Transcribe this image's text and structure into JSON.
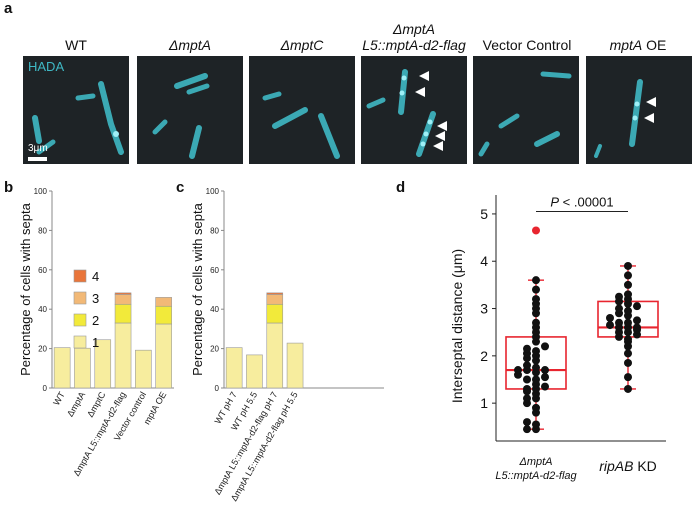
{
  "panel_a": {
    "letter": "a",
    "labels": [
      {
        "main": "WT"
      },
      {
        "main": "ΔmptA",
        "italic": true
      },
      {
        "main": "ΔmptC",
        "italic": true
      },
      {
        "line1": "ΔmptA",
        "line2": "L5::mptA-d2-flag",
        "italic": true
      },
      {
        "main": "Vector Control"
      },
      {
        "main": "mptA OE",
        "italic_part": "mptA",
        "plain_part": " OE"
      }
    ],
    "stain_label": "HADA",
    "scale_bar_label": "3μm",
    "colors": {
      "stain": "#3fb8c4",
      "background": "#1e2326"
    }
  },
  "panel_b": {
    "letter": "b"
  },
  "panel_c": {
    "letter": "c"
  },
  "panel_d": {
    "letter": "d"
  },
  "chart_data": [
    {
      "type": "bar",
      "stacked": true,
      "ylabel": "Percentage of cells with septa",
      "ylim": [
        0,
        100
      ],
      "yticks": [
        0,
        20,
        40,
        60,
        80,
        100
      ],
      "categories": [
        "WT",
        "ΔmptA",
        "ΔmptC",
        "ΔmptA L5::mptA-d2-flag",
        "Vector control",
        "mptA OE"
      ],
      "legend": [
        "4",
        "3",
        "2",
        "1"
      ],
      "series": [
        {
          "name": "1",
          "color": "#f7ed9e",
          "values": [
            20.5,
            20.2,
            24.5,
            33,
            19.2,
            32.5
          ]
        },
        {
          "name": "2",
          "color": "#f2ea3a",
          "values": [
            0,
            0,
            0,
            9.5,
            0,
            9
          ]
        },
        {
          "name": "3",
          "color": "#f2b977",
          "values": [
            0,
            0,
            0,
            5,
            0,
            4.5
          ]
        },
        {
          "name": "4",
          "color": "#e9753a",
          "values": [
            0,
            0,
            0,
            0.8,
            0,
            0
          ]
        }
      ]
    },
    {
      "type": "bar",
      "stacked": true,
      "ylabel": "Percentage of cells with septa",
      "ylim": [
        0,
        100
      ],
      "yticks": [
        0,
        20,
        40,
        60,
        80,
        100
      ],
      "categories": [
        "WT pH 7",
        "WT pH 5.5",
        "ΔmptA L5::mptA-d2-flag pH 7",
        "ΔmptA L5::mptA-d2-flag pH 5.5"
      ],
      "series": [
        {
          "name": "1",
          "color": "#f7ed9e",
          "values": [
            20.5,
            16.8,
            33,
            22.8
          ]
        },
        {
          "name": "2",
          "color": "#f2ea3a",
          "values": [
            0,
            0,
            9.5,
            0
          ]
        },
        {
          "name": "3",
          "color": "#f2b977",
          "values": [
            0,
            0,
            5,
            0
          ]
        },
        {
          "name": "4",
          "color": "#e9753a",
          "values": [
            0,
            0,
            0.8,
            0
          ]
        }
      ]
    },
    {
      "type": "scatter",
      "subtype": "box-and-dots",
      "ylabel": "Interseptal distance (μm)",
      "ylim": [
        0.2,
        5.4
      ],
      "yticks": [
        1,
        2,
        3,
        4,
        5
      ],
      "categories": [
        "ΔmptA L5::mptA-d2-flag",
        "ripAB KD"
      ],
      "category_lines": [
        [
          "ΔmptA",
          "L5::mptA-d2-flag"
        ],
        [
          "ripAB KD"
        ]
      ],
      "annotation": "P < .00001",
      "boxes": [
        {
          "q1": 1.3,
          "median": 1.7,
          "q3": 2.4,
          "whisker_low": 0.45,
          "whisker_high": 3.6,
          "outliers": [
            4.65
          ]
        },
        {
          "q1": 2.4,
          "median": 2.6,
          "q3": 3.15,
          "whisker_low": 1.3,
          "whisker_high": 3.9,
          "outliers": []
        }
      ],
      "points": [
        [
          0.45,
          0.45,
          0.55,
          0.6,
          0.8,
          0.9,
          1.0,
          1.1,
          1.1,
          1.2,
          1.25,
          1.3,
          1.3,
          1.35,
          1.4,
          1.5,
          1.5,
          1.55,
          1.6,
          1.65,
          1.7,
          1.7,
          1.7,
          1.75,
          1.8,
          1.9,
          1.95,
          2.0,
          2.05,
          2.1,
          2.15,
          2.2,
          2.3,
          2.4,
          2.5,
          2.6,
          2.7,
          2.9,
          3.0,
          3.1,
          3.2,
          3.4,
          3.6
        ],
        [
          1.3,
          1.55,
          1.85,
          2.05,
          2.2,
          2.3,
          2.35,
          2.4,
          2.45,
          2.5,
          2.5,
          2.55,
          2.6,
          2.6,
          2.6,
          2.65,
          2.7,
          2.7,
          2.75,
          2.8,
          2.85,
          2.9,
          2.95,
          3.0,
          3.05,
          3.1,
          3.15,
          3.2,
          3.25,
          3.3,
          3.5,
          3.7,
          3.9
        ]
      ],
      "colors": {
        "box": "#e8252f",
        "dot": "#111111",
        "outlier": "#e8252f"
      }
    }
  ]
}
